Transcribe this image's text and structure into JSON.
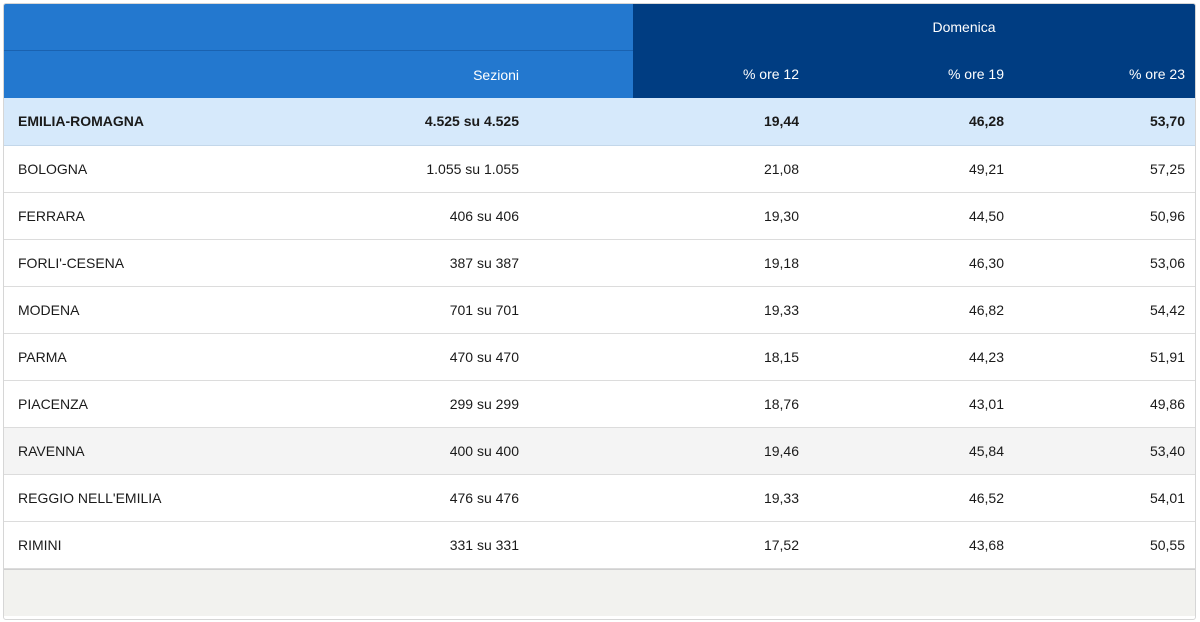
{
  "header": {
    "group_label": "Domenica",
    "columns": {
      "sezioni": "Sezioni",
      "ore12": "% ore 12",
      "ore19": "% ore 19",
      "ore23": "% ore 23"
    }
  },
  "rows": [
    {
      "name": "EMILIA-ROMAGNA",
      "sezioni": "4.525 su 4.525",
      "ore12": "19,44",
      "ore19": "46,28",
      "ore23": "53,70"
    },
    {
      "name": "BOLOGNA",
      "sezioni": "1.055 su 1.055",
      "ore12": "21,08",
      "ore19": "49,21",
      "ore23": "57,25"
    },
    {
      "name": "FERRARA",
      "sezioni": "406 su 406",
      "ore12": "19,30",
      "ore19": "44,50",
      "ore23": "50,96"
    },
    {
      "name": "FORLI'-CESENA",
      "sezioni": "387 su 387",
      "ore12": "19,18",
      "ore19": "46,30",
      "ore23": "53,06"
    },
    {
      "name": "MODENA",
      "sezioni": "701 su 701",
      "ore12": "19,33",
      "ore19": "46,82",
      "ore23": "54,42"
    },
    {
      "name": "PARMA",
      "sezioni": "470 su 470",
      "ore12": "18,15",
      "ore19": "44,23",
      "ore23": "51,91"
    },
    {
      "name": "PIACENZA",
      "sezioni": "299 su 299",
      "ore12": "18,76",
      "ore19": "43,01",
      "ore23": "49,86"
    },
    {
      "name": "RAVENNA",
      "sezioni": "400 su 400",
      "ore12": "19,46",
      "ore19": "45,84",
      "ore23": "53,40"
    },
    {
      "name": "REGGIO NELL'EMILIA",
      "sezioni": "476 su 476",
      "ore12": "19,33",
      "ore19": "46,52",
      "ore23": "54,01"
    },
    {
      "name": "RIMINI",
      "sezioni": "331 su 331",
      "ore12": "17,52",
      "ore19": "43,68",
      "ore23": "50,55"
    }
  ],
  "colors": {
    "header_light": "#2378cf",
    "header_dark": "#003d82",
    "total_row_bg": "#d6e9fb",
    "hover_row_bg": "#f4f4f4",
    "footer_bg": "#f2f2ef"
  }
}
